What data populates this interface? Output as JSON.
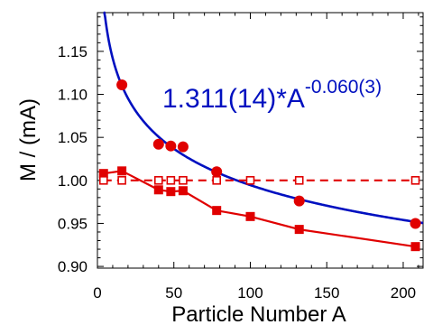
{
  "chart_data": {
    "type": "scatter",
    "title": "",
    "xlabel": "Particle Number A",
    "ylabel": "M / (mA)",
    "xlim": [
      0,
      213
    ],
    "ylim": [
      0.898,
      1.195
    ],
    "xticks": [
      0,
      50,
      100,
      150,
      200
    ],
    "xtick_labels": [
      "0",
      "50",
      "100",
      "150",
      "200"
    ],
    "yticks": [
      0.9,
      0.95,
      1.0,
      1.05,
      1.1,
      1.15
    ],
    "ytick_labels": [
      "0.90",
      "0.95",
      "1.00",
      "1.05",
      "1.10",
      "1.15"
    ],
    "grid": false,
    "fit_label": {
      "base": "1.311(14)*A",
      "exponent": "-0.060(3)"
    },
    "fit": {
      "coefficient": 1.311,
      "power": -0.06,
      "x_range": [
        4,
        213
      ],
      "color": "#0010c0"
    },
    "series": [
      {
        "marker": "circle-filled",
        "color": "#e00000",
        "line": "none",
        "x": [
          16,
          40,
          48,
          56,
          78,
          132,
          208
        ],
        "y": [
          1.111,
          1.042,
          1.04,
          1.039,
          1.01,
          0.976,
          0.95
        ]
      },
      {
        "marker": "square-filled",
        "color": "#e00000",
        "line": "solid",
        "x": [
          4,
          16,
          40,
          48,
          56,
          78,
          100,
          132,
          208
        ],
        "y": [
          1.008,
          1.011,
          0.989,
          0.987,
          0.988,
          0.965,
          0.958,
          0.943,
          0.923
        ]
      },
      {
        "marker": "square-open",
        "color": "#e00000",
        "line": "dashed",
        "x": [
          4,
          16,
          40,
          48,
          56,
          78,
          100,
          132,
          208
        ],
        "y": [
          1.0,
          1.0,
          1.0,
          1.0,
          1.0,
          1.0,
          1.0,
          1.0,
          1.0
        ]
      }
    ]
  }
}
